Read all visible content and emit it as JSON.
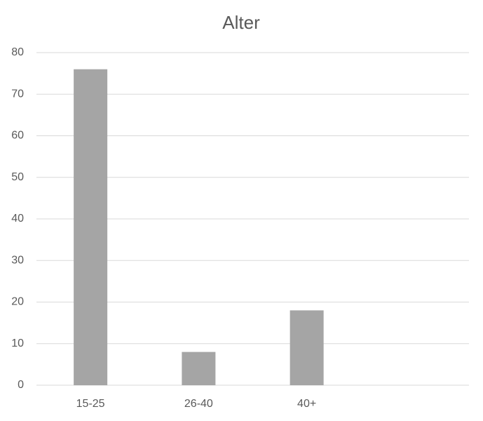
{
  "chart_data": {
    "type": "bar",
    "title": "Alter",
    "categories": [
      "15-25",
      "26-40",
      "40+",
      null
    ],
    "values": [
      76,
      8,
      18,
      null
    ],
    "color": "#a5a5a5",
    "ylim": [
      0,
      80
    ],
    "yticks": [
      0,
      10,
      20,
      30,
      40,
      50,
      60,
      70,
      80
    ],
    "grid": true
  }
}
